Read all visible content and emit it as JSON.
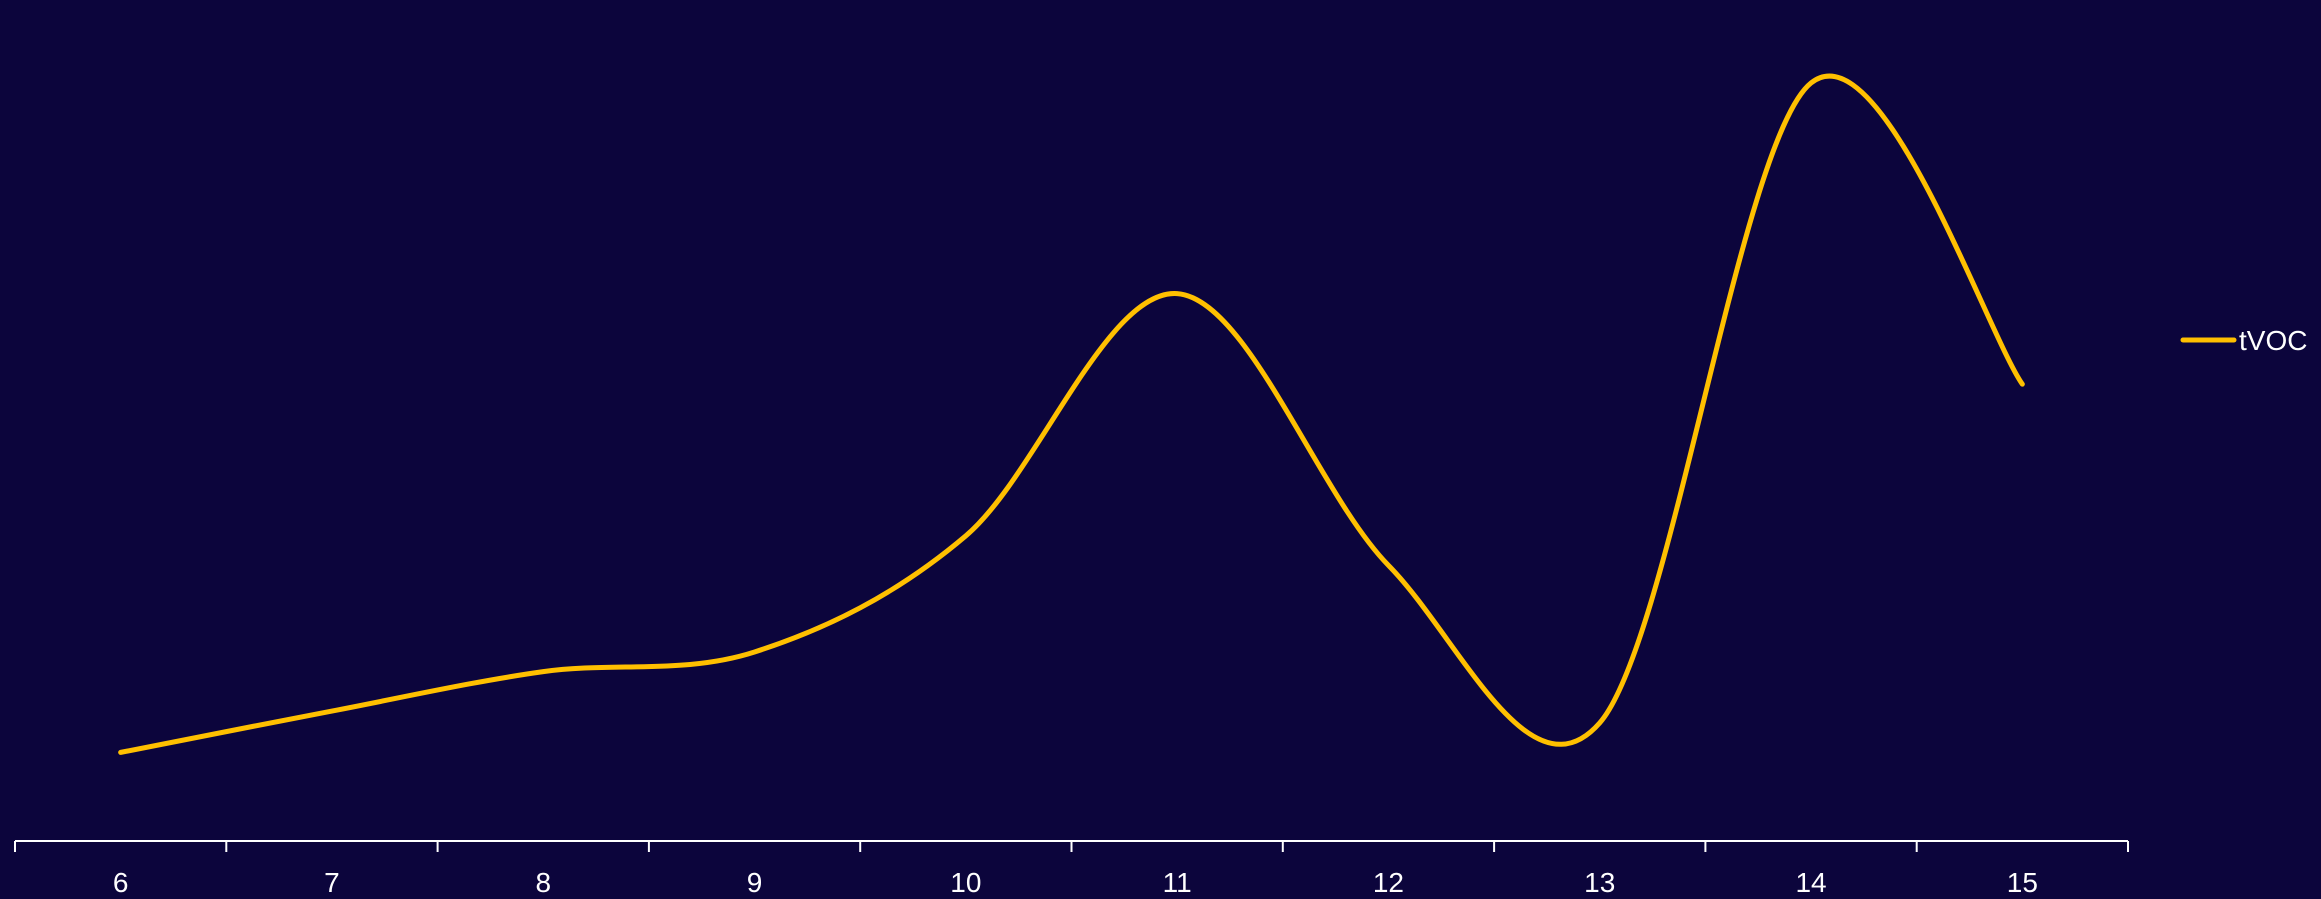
{
  "chart_data": {
    "type": "line",
    "smooth": true,
    "x_categories": [
      "6",
      "7",
      "8",
      "9",
      "10",
      "11",
      "12",
      "13",
      "14",
      "15"
    ],
    "series": [
      {
        "name": "tVOC",
        "color": "#ffc000",
        "values": [
          5,
          26,
          46,
          56,
          115,
          238,
          100,
          20,
          345,
          192
        ]
      }
    ],
    "x_range": [
      5.5,
      15.5
    ],
    "y_range": [
      -40,
      380
    ],
    "y_axis_shown": false,
    "grid": false,
    "legend": {
      "placement": "right",
      "entries": [
        "tVOC"
      ]
    },
    "colors": {
      "background": "#0c053c",
      "axis": "#ffffff",
      "text": "#ffffff"
    }
  }
}
